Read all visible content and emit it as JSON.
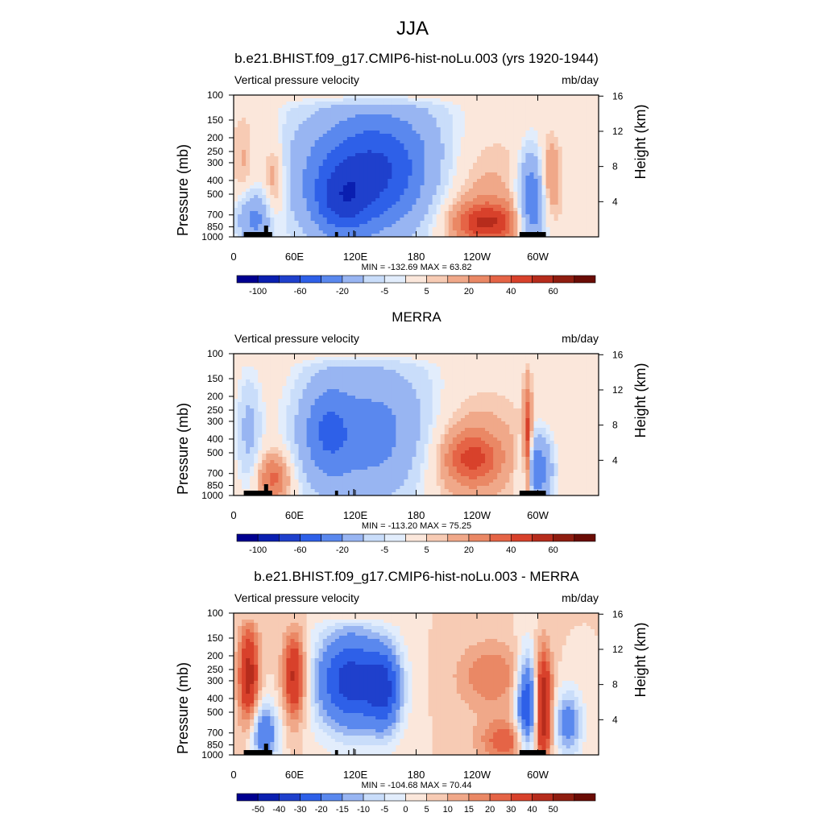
{
  "page_title": "JJA",
  "colors": {
    "scale_a": [
      "#000090",
      "#0a1fb0",
      "#1f40cc",
      "#2e60e8",
      "#5a88ee",
      "#98b5f2",
      "#c9ddfa",
      "#e2edfc",
      "#fbe7db",
      "#f7cbb4",
      "#f0a889",
      "#ea8865",
      "#e56446",
      "#d8412b",
      "#b62c1c",
      "#8f1d10",
      "#6a0c05"
    ],
    "scale_b": [
      "#000090",
      "#0a1fb0",
      "#1f40cc",
      "#2e60e8",
      "#5a88ee",
      "#98b5f2",
      "#c9ddfa",
      "#e2edfc",
      "#fbe7db",
      "#f7cbb4",
      "#f0a889",
      "#ea8865",
      "#e56446",
      "#d8412b",
      "#b62c1c",
      "#8f1d10",
      "#6a0c05"
    ],
    "terrain": "#000000"
  },
  "panels": [
    {
      "title": "b.e21.BHIST.f09_g17.CMIP6-hist-noLu.003 (yrs 1920-1944)",
      "left_string": "Vertical pressure velocity",
      "right_string": "mb/day",
      "stats": "MIN = -132.69  MAX =  63.82"
    },
    {
      "title": "MERRA",
      "left_string": "Vertical pressure velocity",
      "right_string": "mb/day",
      "stats": "MIN = -113.20  MAX =  75.25"
    },
    {
      "title": "b.e21.BHIST.f09_g17.CMIP6-hist-noLu.003 - MERRA",
      "left_string": "Vertical pressure velocity",
      "right_string": "mb/day",
      "stats": "MIN = -104.68  MAX =  70.44"
    }
  ],
  "chart_data": [
    {
      "type": "heatmap",
      "title": "b.e21.BHIST.f09_g17.CMIP6-hist-noLu.003 (yrs 1920-1944)",
      "variable": "Vertical pressure velocity",
      "units": "mb/day",
      "ylabel": "Pressure (mb)",
      "ylabel_right": "Height (km)",
      "x_tick_labels": [
        "0",
        "60E",
        "120E",
        "180",
        "120W",
        "60W"
      ],
      "y_tick_labels": [
        "100",
        "150",
        "200",
        "250",
        "300",
        "400",
        "500",
        "700",
        "850",
        "1000"
      ],
      "y_right_tick_labels": [
        "16",
        "12",
        "8",
        "4"
      ],
      "colorbar_labels": [
        "-100",
        "-60",
        "-20",
        "-5",
        "5",
        "20",
        "40",
        "60"
      ],
      "min": -132.69,
      "max": 63.82,
      "features": [
        {
          "lon": 145,
          "p": 350,
          "v": -95,
          "sx": 55,
          "sy": 0.75
        },
        {
          "lon": 105,
          "p": 600,
          "v": -40,
          "sx": 20,
          "sy": 0.4
        },
        {
          "lon": 215,
          "p": 420,
          "v": 35,
          "sx": 45,
          "sy": 0.7
        },
        {
          "lon": 250,
          "p": 800,
          "v": 45,
          "sx": 25,
          "sy": 0.25
        },
        {
          "lon": 295,
          "p": 550,
          "v": -70,
          "sx": 10,
          "sy": 0.55
        },
        {
          "lon": 310,
          "p": 400,
          "v": 30,
          "sx": 8,
          "sy": 0.45
        },
        {
          "lon": 40,
          "p": 400,
          "v": 28,
          "sx": 8,
          "sy": 0.5
        },
        {
          "lon": 20,
          "p": 750,
          "v": -45,
          "sx": 12,
          "sy": 0.3
        },
        {
          "lon": 10,
          "p": 300,
          "v": 15,
          "sx": 10,
          "sy": 0.6
        }
      ]
    },
    {
      "type": "heatmap",
      "title": "MERRA",
      "variable": "Vertical pressure velocity",
      "units": "mb/day",
      "ylabel": "Pressure (mb)",
      "ylabel_right": "Height (km)",
      "x_tick_labels": [
        "0",
        "60E",
        "120E",
        "180",
        "120W",
        "60W"
      ],
      "y_tick_labels": [
        "100",
        "150",
        "200",
        "250",
        "300",
        "400",
        "500",
        "700",
        "850",
        "1000"
      ],
      "y_right_tick_labels": [
        "16",
        "12",
        "8",
        "4"
      ],
      "colorbar_labels": [
        "-100",
        "-60",
        "-20",
        "-5",
        "5",
        "20",
        "40",
        "60"
      ],
      "min": -113.2,
      "max": 75.25,
      "features": [
        {
          "lon": 145,
          "p": 380,
          "v": -55,
          "sx": 45,
          "sy": 0.8
        },
        {
          "lon": 90,
          "p": 350,
          "v": -40,
          "sx": 18,
          "sy": 0.6
        },
        {
          "lon": 215,
          "p": 480,
          "v": 25,
          "sx": 45,
          "sy": 0.7
        },
        {
          "lon": 235,
          "p": 550,
          "v": 30,
          "sx": 20,
          "sy": 0.3
        },
        {
          "lon": 290,
          "p": 500,
          "v": 55,
          "sx": 3,
          "sy": 0.7
        },
        {
          "lon": 300,
          "p": 650,
          "v": -60,
          "sx": 10,
          "sy": 0.4
        },
        {
          "lon": 40,
          "p": 750,
          "v": 35,
          "sx": 12,
          "sy": 0.3
        },
        {
          "lon": 15,
          "p": 350,
          "v": -25,
          "sx": 8,
          "sy": 0.6
        }
      ]
    },
    {
      "type": "heatmap",
      "title": "b.e21.BHIST.f09_g17.CMIP6-hist-noLu.003 - MERRA",
      "variable": "Vertical pressure velocity",
      "units": "mb/day",
      "ylabel": "Pressure (mb)",
      "ylabel_right": "Height (km)",
      "x_tick_labels": [
        "0",
        "60E",
        "120E",
        "180",
        "120W",
        "60W"
      ],
      "y_tick_labels": [
        "100",
        "150",
        "200",
        "250",
        "300",
        "400",
        "500",
        "700",
        "850",
        "1000"
      ],
      "y_right_tick_labels": [
        "16",
        "12",
        "8",
        "4"
      ],
      "colorbar_labels": [
        "-50",
        "-40",
        "-30",
        "-20",
        "-15",
        "-10",
        "-5",
        "0",
        "5",
        "10",
        "15",
        "20",
        "30",
        "40",
        "50"
      ],
      "min": -104.68,
      "max": 70.44,
      "features": [
        {
          "lon": 115,
          "p": 300,
          "v": -45,
          "sx": 25,
          "sy": 0.6
        },
        {
          "lon": 150,
          "p": 350,
          "v": -30,
          "sx": 12,
          "sy": 0.5
        },
        {
          "lon": 60,
          "p": 280,
          "v": 35,
          "sx": 8,
          "sy": 0.5
        },
        {
          "lon": 15,
          "p": 280,
          "v": 35,
          "sx": 7,
          "sy": 0.6
        },
        {
          "lon": 290,
          "p": 450,
          "v": -45,
          "sx": 8,
          "sy": 0.6
        },
        {
          "lon": 305,
          "p": 450,
          "v": 45,
          "sx": 6,
          "sy": 0.6
        },
        {
          "lon": 330,
          "p": 600,
          "v": -25,
          "sx": 10,
          "sy": 0.4
        },
        {
          "lon": 255,
          "p": 280,
          "v": 15,
          "sx": 25,
          "sy": 0.4
        },
        {
          "lon": 270,
          "p": 800,
          "v": 20,
          "sx": 20,
          "sy": 0.25
        },
        {
          "lon": 30,
          "p": 700,
          "v": -30,
          "sx": 10,
          "sy": 0.35
        }
      ]
    }
  ]
}
